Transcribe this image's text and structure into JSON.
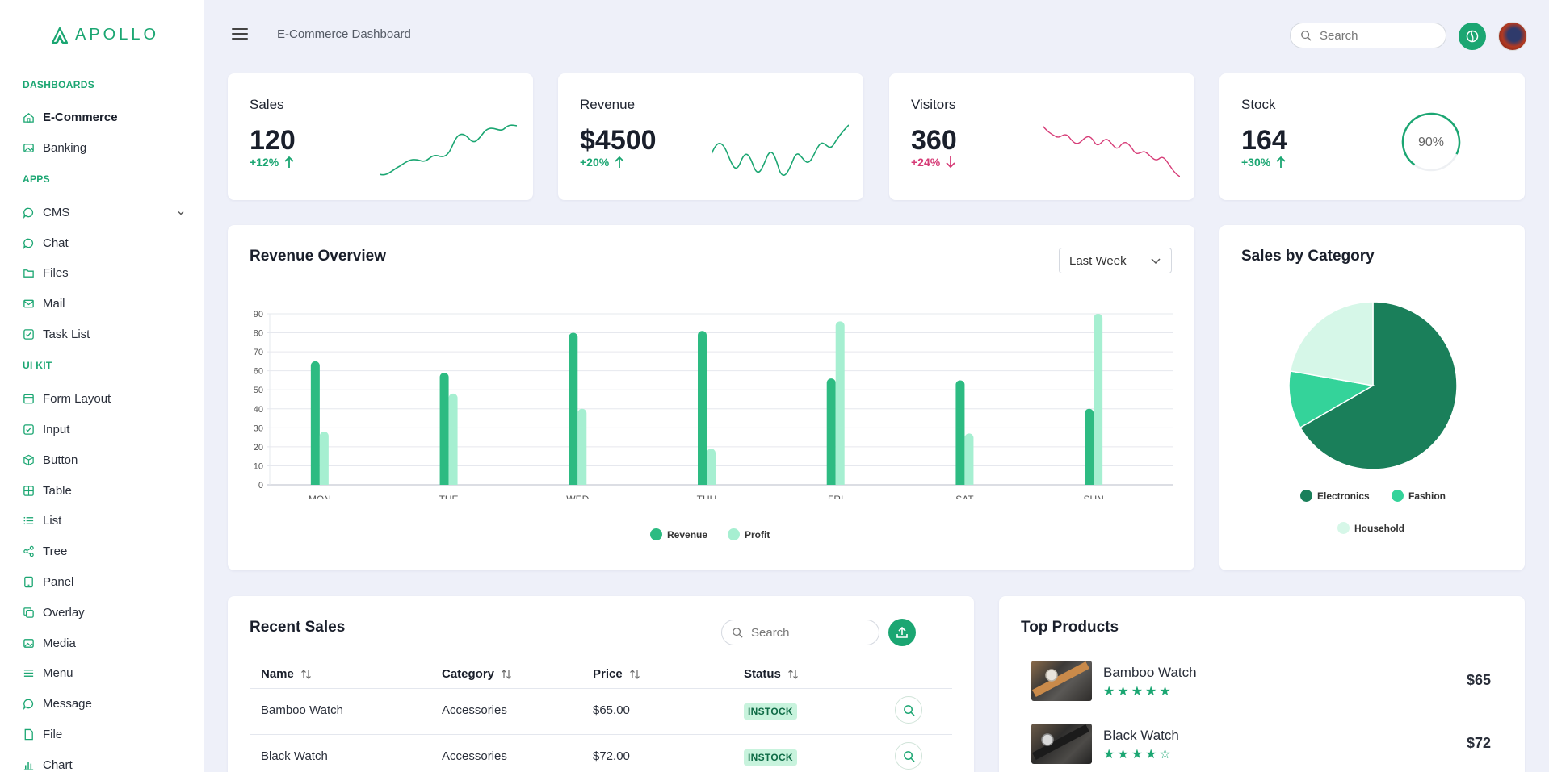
{
  "brand": {
    "name": "APOLLO",
    "color": "#1ba672"
  },
  "sidebar": {
    "sections": [
      {
        "label": "DASHBOARDS",
        "items": [
          {
            "label": "E-Commerce",
            "icon": "home-icon",
            "active": true
          },
          {
            "label": "Banking",
            "icon": "image-icon"
          }
        ]
      },
      {
        "label": "APPS",
        "items": [
          {
            "label": "CMS",
            "icon": "chat-bubble-icon",
            "expandable": true
          },
          {
            "label": "Chat",
            "icon": "chat-icon"
          },
          {
            "label": "Files",
            "icon": "folder-icon"
          },
          {
            "label": "Mail",
            "icon": "mail-icon"
          },
          {
            "label": "Task List",
            "icon": "checkbox-icon"
          }
        ]
      },
      {
        "label": "UI KIT",
        "items": [
          {
            "label": "Form Layout",
            "icon": "layout-icon"
          },
          {
            "label": "Input",
            "icon": "checkbox-icon"
          },
          {
            "label": "Button",
            "icon": "box-icon"
          },
          {
            "label": "Table",
            "icon": "table-icon"
          },
          {
            "label": "List",
            "icon": "list-icon"
          },
          {
            "label": "Tree",
            "icon": "share-icon"
          },
          {
            "label": "Panel",
            "icon": "tablet-icon"
          },
          {
            "label": "Overlay",
            "icon": "copy-icon"
          },
          {
            "label": "Media",
            "icon": "image-icon"
          },
          {
            "label": "Menu",
            "icon": "menu-icon"
          },
          {
            "label": "Message",
            "icon": "message-icon"
          },
          {
            "label": "File",
            "icon": "file-icon"
          },
          {
            "label": "Chart",
            "icon": "bar-chart-icon"
          }
        ]
      }
    ]
  },
  "topbar": {
    "title": "E-Commerce Dashboard",
    "search_placeholder": "Search"
  },
  "stats": [
    {
      "title": "Sales",
      "value": "120",
      "change": "+12%",
      "trend": "up",
      "color": "#1ba672"
    },
    {
      "title": "Revenue",
      "value": "$4500",
      "change": "+20%",
      "trend": "up",
      "color": "#1ba672"
    },
    {
      "title": "Visitors",
      "value": "360",
      "change": "+24%",
      "trend": "down",
      "color": "#d63c77"
    },
    {
      "title": "Stock",
      "value": "164",
      "change": "+30%",
      "trend": "up",
      "color": "#1ba672",
      "gauge_label": "90%",
      "gauge_value": 0.9
    }
  ],
  "revenue_overview": {
    "title": "Revenue Overview",
    "period": "Last Week"
  },
  "sales_by_category": {
    "title": "Sales by Category"
  },
  "chart_data": [
    {
      "type": "bar",
      "title": "Revenue Overview",
      "categories": [
        "MON",
        "TUE",
        "WED",
        "THU",
        "FRI",
        "SAT",
        "SUN"
      ],
      "series": [
        {
          "name": "Revenue",
          "color": "#2dbb82",
          "values": [
            65,
            59,
            80,
            81,
            56,
            55,
            40
          ]
        },
        {
          "name": "Profit",
          "color": "#a6efd1",
          "values": [
            28,
            48,
            40,
            19,
            86,
            27,
            90
          ]
        }
      ],
      "ylim": [
        0,
        90
      ],
      "yticks": [
        0,
        10,
        20,
        30,
        40,
        50,
        60,
        70,
        80,
        90
      ],
      "grid": true,
      "legend": "bottom"
    },
    {
      "type": "pie",
      "title": "Sales by Category",
      "labels": [
        "Electronics",
        "Fashion",
        "Household"
      ],
      "values": [
        300,
        50,
        100
      ],
      "colors": [
        "#1a7f5a",
        "#34d39a",
        "#d6f7e8"
      ],
      "legend": "bottom"
    }
  ],
  "recent_sales": {
    "title": "Recent Sales",
    "search_placeholder": "Search",
    "columns": [
      "Name",
      "Category",
      "Price",
      "Status"
    ],
    "rows": [
      {
        "name": "Bamboo Watch",
        "category": "Accessories",
        "price": "$65.00",
        "status": "INSTOCK"
      },
      {
        "name": "Black Watch",
        "category": "Accessories",
        "price": "$72.00",
        "status": "INSTOCK"
      }
    ]
  },
  "top_products": {
    "title": "Top Products",
    "items": [
      {
        "name": "Bamboo Watch",
        "rating": 5,
        "price": "$65"
      },
      {
        "name": "Black Watch",
        "rating": 4,
        "price": "$72"
      }
    ]
  }
}
